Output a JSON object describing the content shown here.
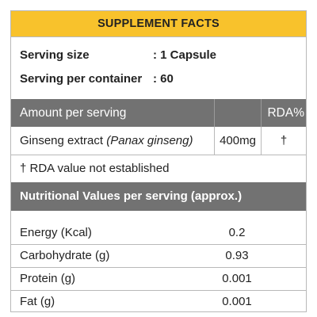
{
  "title": "SUPPLEMENT FACTS",
  "serving_size": {
    "label": "Serving size",
    "value": ": 1 Capsule"
  },
  "serving_per_container": {
    "label": "Serving per container",
    "value": ": 60"
  },
  "amount_header": {
    "label": "Amount per serving",
    "rda": "RDA%"
  },
  "ingredient": {
    "name": "Ginseng extract",
    "latin": "(Panax ginseng)",
    "amount": "400mg",
    "rda": "†"
  },
  "footnote": "† RDA value not established",
  "nutrition_header": "Nutritional Values per serving (approx.)",
  "nutrition": [
    {
      "name": "Energy (Kcal)",
      "value": "0.2"
    },
    {
      "name": "Carbohydrate (g)",
      "value": "0.93"
    },
    {
      "name": "Protein (g)",
      "value": "0.001"
    },
    {
      "name": "Fat (g)",
      "value": "0.001"
    }
  ],
  "colors": {
    "header_bar": "#f8c22c",
    "section_bar": "#727272"
  }
}
